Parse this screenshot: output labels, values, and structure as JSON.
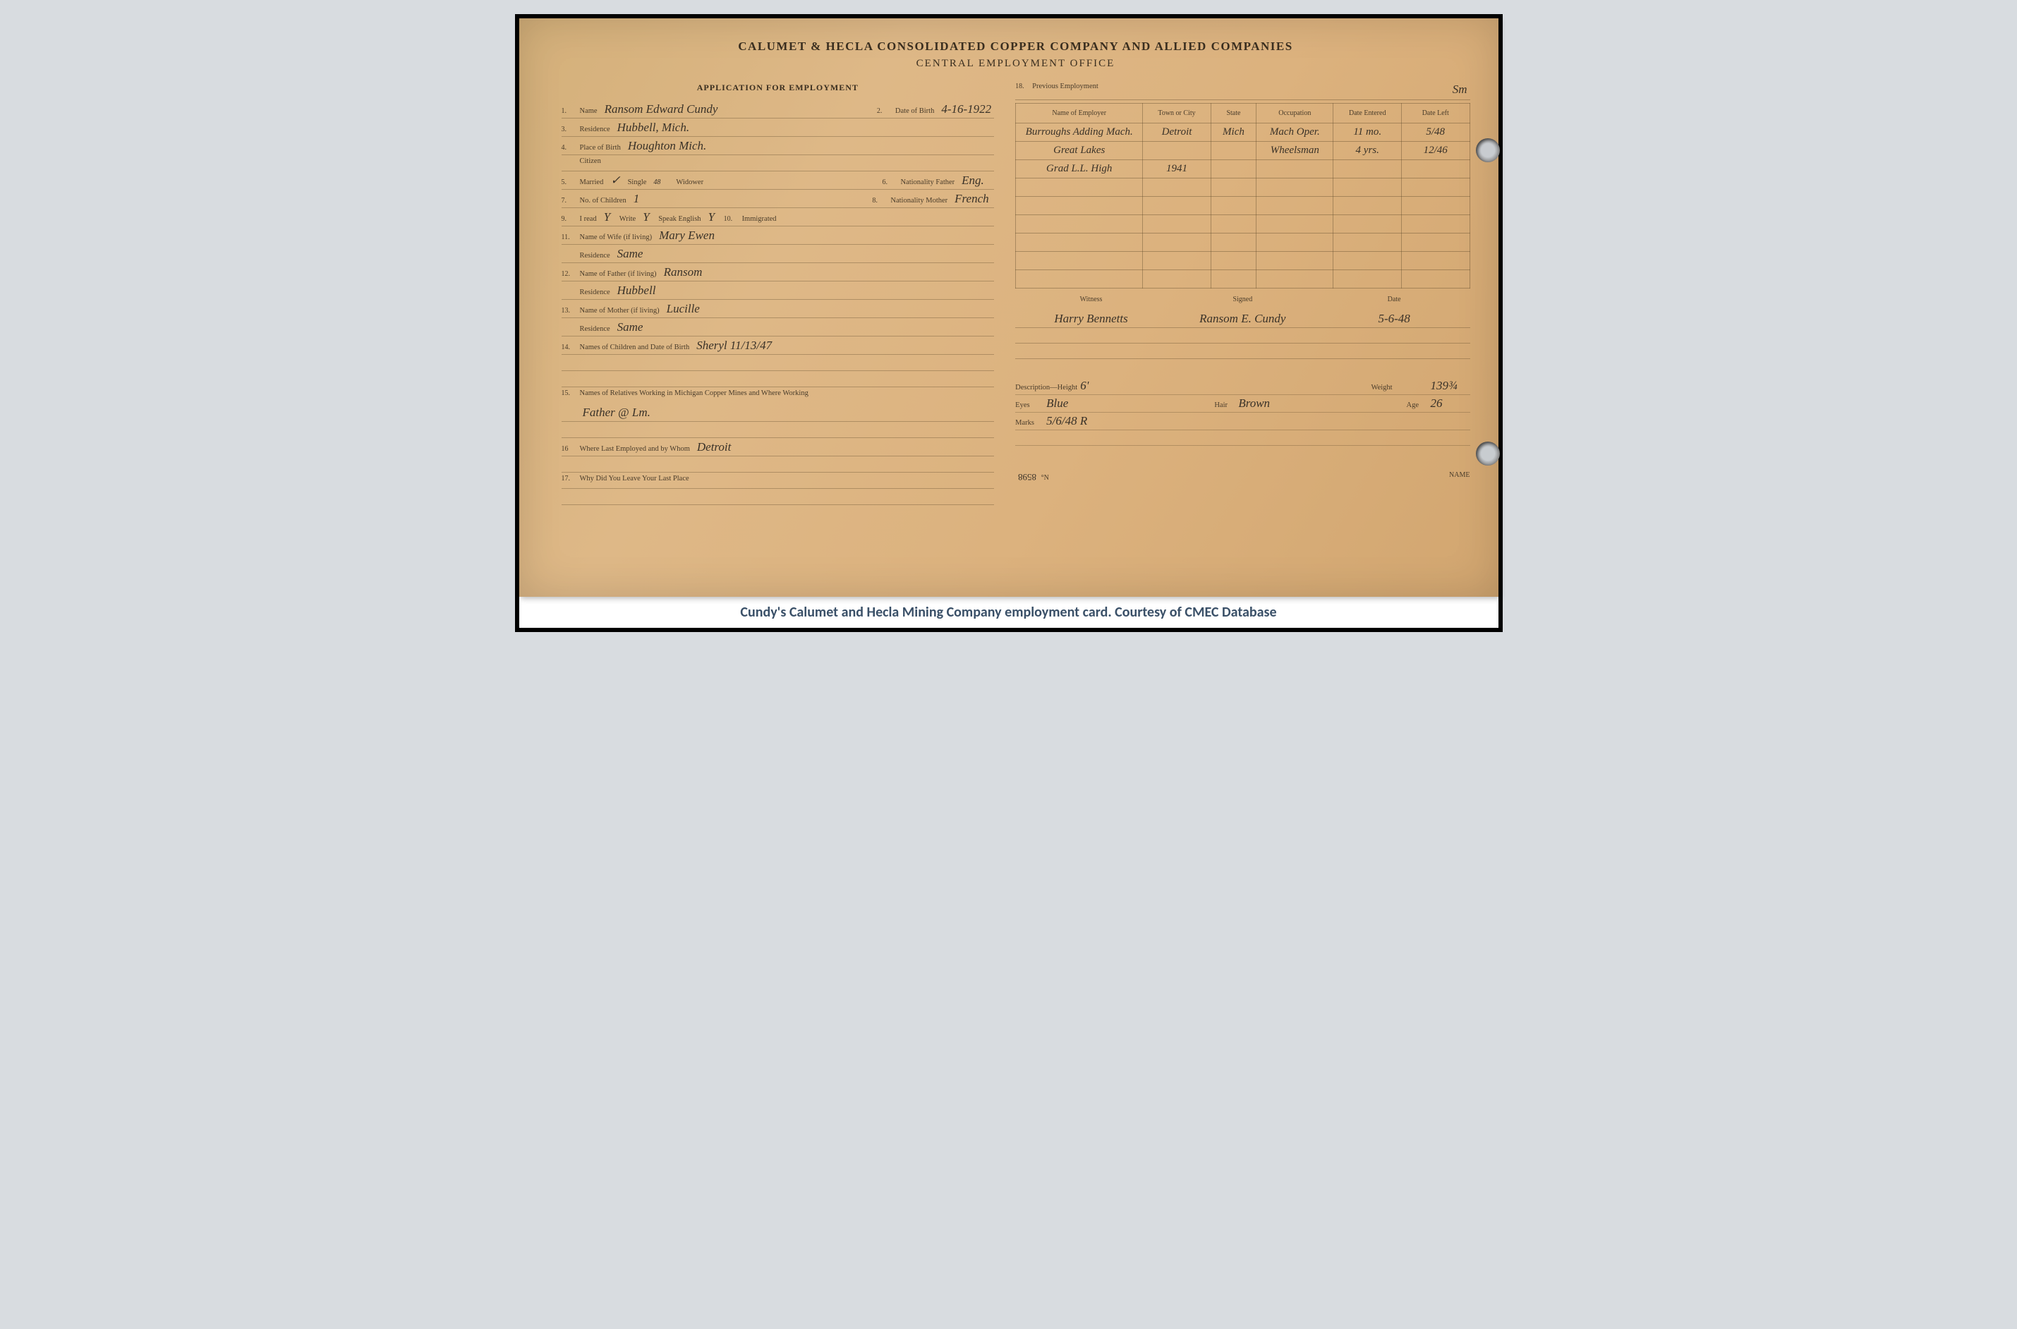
{
  "header": {
    "company": "CALUMET & HECLA CONSOLIDATED COPPER COMPANY AND ALLIED COMPANIES",
    "office": "CENTRAL EMPLOYMENT OFFICE"
  },
  "left": {
    "section_title": "APPLICATION FOR EMPLOYMENT",
    "fields": {
      "name_lbl": "Name",
      "name": "Ransom Edward Cundy",
      "dob_lbl": "Date of Birth",
      "dob": "4-16-1922",
      "residence_lbl": "Residence",
      "residence": "Hubbell, Mich.",
      "place_birth_lbl": "Place of Birth",
      "place_birth": "Houghton Mich.",
      "citizen_lbl": "Citizen",
      "citizen": "",
      "married_lbl": "Married",
      "married": "✓",
      "single_lbl": "Single",
      "single": "",
      "single_sub": "48",
      "widower_lbl": "Widower",
      "widower": "",
      "nat_father_lbl": "Nationality Father",
      "nat_father": "Eng.",
      "num_children_lbl": "No. of Children",
      "num_children": "1",
      "nat_mother_lbl": "Nationality Mother",
      "nat_mother": "French",
      "read_lbl": "I read",
      "read": "Y",
      "write_lbl": "Write",
      "write": "Y",
      "speak_lbl": "Speak English",
      "speak": "Y",
      "immigrated_lbl": "Immigrated",
      "immigrated": "",
      "wife_lbl": "Name of Wife (if living)",
      "wife": "Mary Ewen",
      "wife_res_lbl": "Residence",
      "wife_res": "Same",
      "father_lbl": "Name of Father (if living)",
      "father": "Ransom",
      "father_res_lbl": "Residence",
      "father_res": "Hubbell",
      "mother_lbl": "Name of Mother (if living)",
      "mother": "Lucille",
      "mother_res_lbl": "Residence",
      "mother_res": "Same",
      "children_lbl": "Names of Children and Date of Birth",
      "children": "Sheryl  11/13/47",
      "relatives_lbl": "Names of Relatives Working in Michigan Copper Mines and Where Working",
      "relatives": "Father @ Lm.",
      "last_emp_lbl": "Where Last Employed and by Whom",
      "last_emp": "Detroit",
      "why_leave_lbl": "Why Did You Leave Your Last Place",
      "why_leave": ""
    },
    "nums": {
      "n1": "1.",
      "n2": "2.",
      "n3": "3.",
      "n4": "4.",
      "n5": "5.",
      "n6": "6.",
      "n7": "7.",
      "n8": "8.",
      "n9": "9.",
      "n10": "10.",
      "n11": "11.",
      "n12": "12.",
      "n13": "13.",
      "n14": "14.",
      "n15": "15.",
      "n16": "16",
      "n17": "17."
    }
  },
  "right": {
    "prev_emp_num": "18.",
    "prev_emp_lbl": "Previous Employment",
    "prev_emp_hw": "Sm",
    "table": {
      "headers": {
        "employer": "Name of Employer",
        "town": "Town or City",
        "state": "State",
        "occupation": "Occupation",
        "entered": "Date Entered",
        "left": "Date Left"
      },
      "rows": [
        {
          "employer": "Burroughs Adding Mach.",
          "town": "Detroit",
          "state": "Mich",
          "occupation": "Mach Oper.",
          "entered": "11 mo.",
          "left": "5/48"
        },
        {
          "employer": "Great Lakes",
          "town": "",
          "state": "",
          "occupation": "Wheelsman",
          "entered": "4 yrs.",
          "left": "12/46"
        },
        {
          "employer": "Grad L.L. High",
          "town": "1941",
          "state": "",
          "occupation": "",
          "entered": "",
          "left": ""
        },
        {
          "employer": "",
          "town": "",
          "state": "",
          "occupation": "",
          "entered": "",
          "left": ""
        },
        {
          "employer": "",
          "town": "",
          "state": "",
          "occupation": "",
          "entered": "",
          "left": ""
        },
        {
          "employer": "",
          "town": "",
          "state": "",
          "occupation": "",
          "entered": "",
          "left": ""
        },
        {
          "employer": "",
          "town": "",
          "state": "",
          "occupation": "",
          "entered": "",
          "left": ""
        },
        {
          "employer": "",
          "town": "",
          "state": "",
          "occupation": "",
          "entered": "",
          "left": ""
        },
        {
          "employer": "",
          "town": "",
          "state": "",
          "occupation": "",
          "entered": "",
          "left": ""
        }
      ]
    },
    "sig": {
      "witness_lbl": "Witness",
      "witness": "Harry Bennetts",
      "signed_lbl": "Signed",
      "signed": "Ransom E. Cundy",
      "date_lbl": "Date",
      "date": "5-6-48"
    },
    "desc": {
      "height_lbl": "Description—Height",
      "height": "6'",
      "weight_lbl": "Weight",
      "weight": "139¾",
      "eyes_lbl": "Eyes",
      "eyes": "Blue",
      "hair_lbl": "Hair",
      "hair": "Brown",
      "age_lbl": "Age",
      "age": "26",
      "marks_lbl": "Marks",
      "marks": "5/6/48 R"
    },
    "bottom": {
      "no_lbl": "°N",
      "no": "8598",
      "name_lbl": "NAME"
    }
  },
  "caption": "Cundy's Calumet and Hecla Mining Company employment card. Courtesy of CMEC Database",
  "colors": {
    "paper": "#deb887",
    "ink_print": "#3a2e1f",
    "ink_hand": "#3a3228",
    "rule": "rgba(90,70,40,0.35)",
    "frame": "#000000",
    "caption_bg": "#ffffff",
    "caption_text": "#3a5068"
  }
}
